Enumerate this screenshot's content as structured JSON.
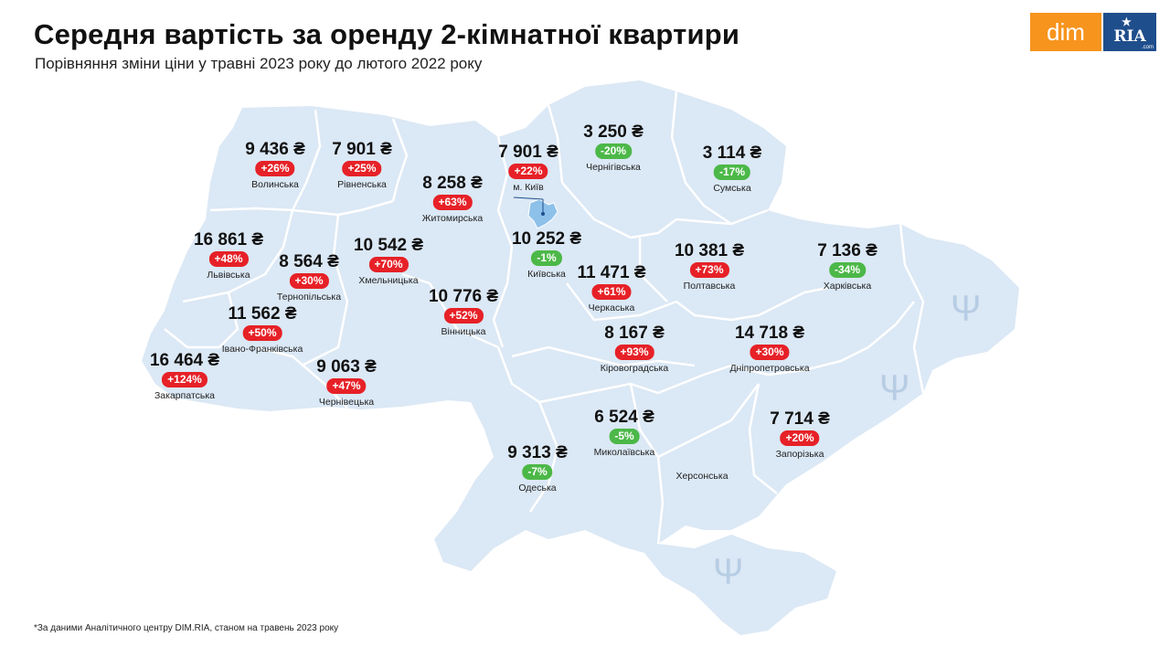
{
  "title": "Середня вартість за оренду 2-кімнатної квартири",
  "subtitle": "Порівняння зміни ціни у травні 2023 року до лютого 2022 року",
  "logo": {
    "left": "dim",
    "right": "RIA",
    "right_suffix": ".com"
  },
  "footnote": "*За даними Аналітичного центру DIM.RIA, станом на травень 2023 року",
  "colors": {
    "map_fill": "#dbe8f5",
    "border": "#ffffff",
    "increase": "#e62127",
    "decrease": "#4cb848",
    "kyiv_city": "#8ec1ea"
  },
  "regions": [
    {
      "price": "9 436 ₴",
      "change": "+26%",
      "dir": "pos",
      "name": "Волинська"
    },
    {
      "price": "7 901 ₴",
      "change": "+25%",
      "dir": "pos",
      "name": "Рівненська"
    },
    {
      "price": "8 258 ₴",
      "change": "+63%",
      "dir": "pos",
      "name": "Житомирська"
    },
    {
      "price": "7 901 ₴",
      "change": "+22%",
      "dir": "pos",
      "name": "м. Київ"
    },
    {
      "price": "3 250 ₴",
      "change": "-20%",
      "dir": "neg",
      "name": "Чернігівська"
    },
    {
      "price": "3 114 ₴",
      "change": "-17%",
      "dir": "neg",
      "name": "Сумська"
    },
    {
      "price": "16 861 ₴",
      "change": "+48%",
      "dir": "pos",
      "name": "Львівська"
    },
    {
      "price": "8 564 ₴",
      "change": "+30%",
      "dir": "pos",
      "name": "Тернопільська"
    },
    {
      "price": "10 542 ₴",
      "change": "+70%",
      "dir": "pos",
      "name": "Хмельницька"
    },
    {
      "price": "10 252 ₴",
      "change": "-1%",
      "dir": "neg",
      "name": "Київська"
    },
    {
      "price": "10 381 ₴",
      "change": "+73%",
      "dir": "pos",
      "name": "Полтавська"
    },
    {
      "price": "7 136 ₴",
      "change": "-34%",
      "dir": "neg",
      "name": "Харківська"
    },
    {
      "price": "11 471 ₴",
      "change": "+61%",
      "dir": "pos",
      "name": "Черкаська"
    },
    {
      "price": "10 776 ₴",
      "change": "+52%",
      "dir": "pos",
      "name": "Вінницька"
    },
    {
      "price": "11 562 ₴",
      "change": "+50%",
      "dir": "pos",
      "name": "Івано-Франківська"
    },
    {
      "price": "8 167 ₴",
      "change": "+93%",
      "dir": "pos",
      "name": "Кіровоградська"
    },
    {
      "price": "14 718 ₴",
      "change": "+30%",
      "dir": "pos",
      "name": "Дніпропетровська"
    },
    {
      "price": "16 464 ₴",
      "change": "+124%",
      "dir": "pos",
      "name": "Закарпатська"
    },
    {
      "price": "9 063 ₴",
      "change": "+47%",
      "dir": "pos",
      "name": "Чернівецька"
    },
    {
      "price": "6 524 ₴",
      "change": "-5%",
      "dir": "neg",
      "name": "Миколаївська"
    },
    {
      "price": "7 714 ₴",
      "change": "+20%",
      "dir": "pos",
      "name": "Запорізька"
    },
    {
      "price": "9 313 ₴",
      "change": "-7%",
      "dir": "neg",
      "name": "Одеська"
    }
  ],
  "unlabeled_regions": [
    "Херсонська"
  ]
}
